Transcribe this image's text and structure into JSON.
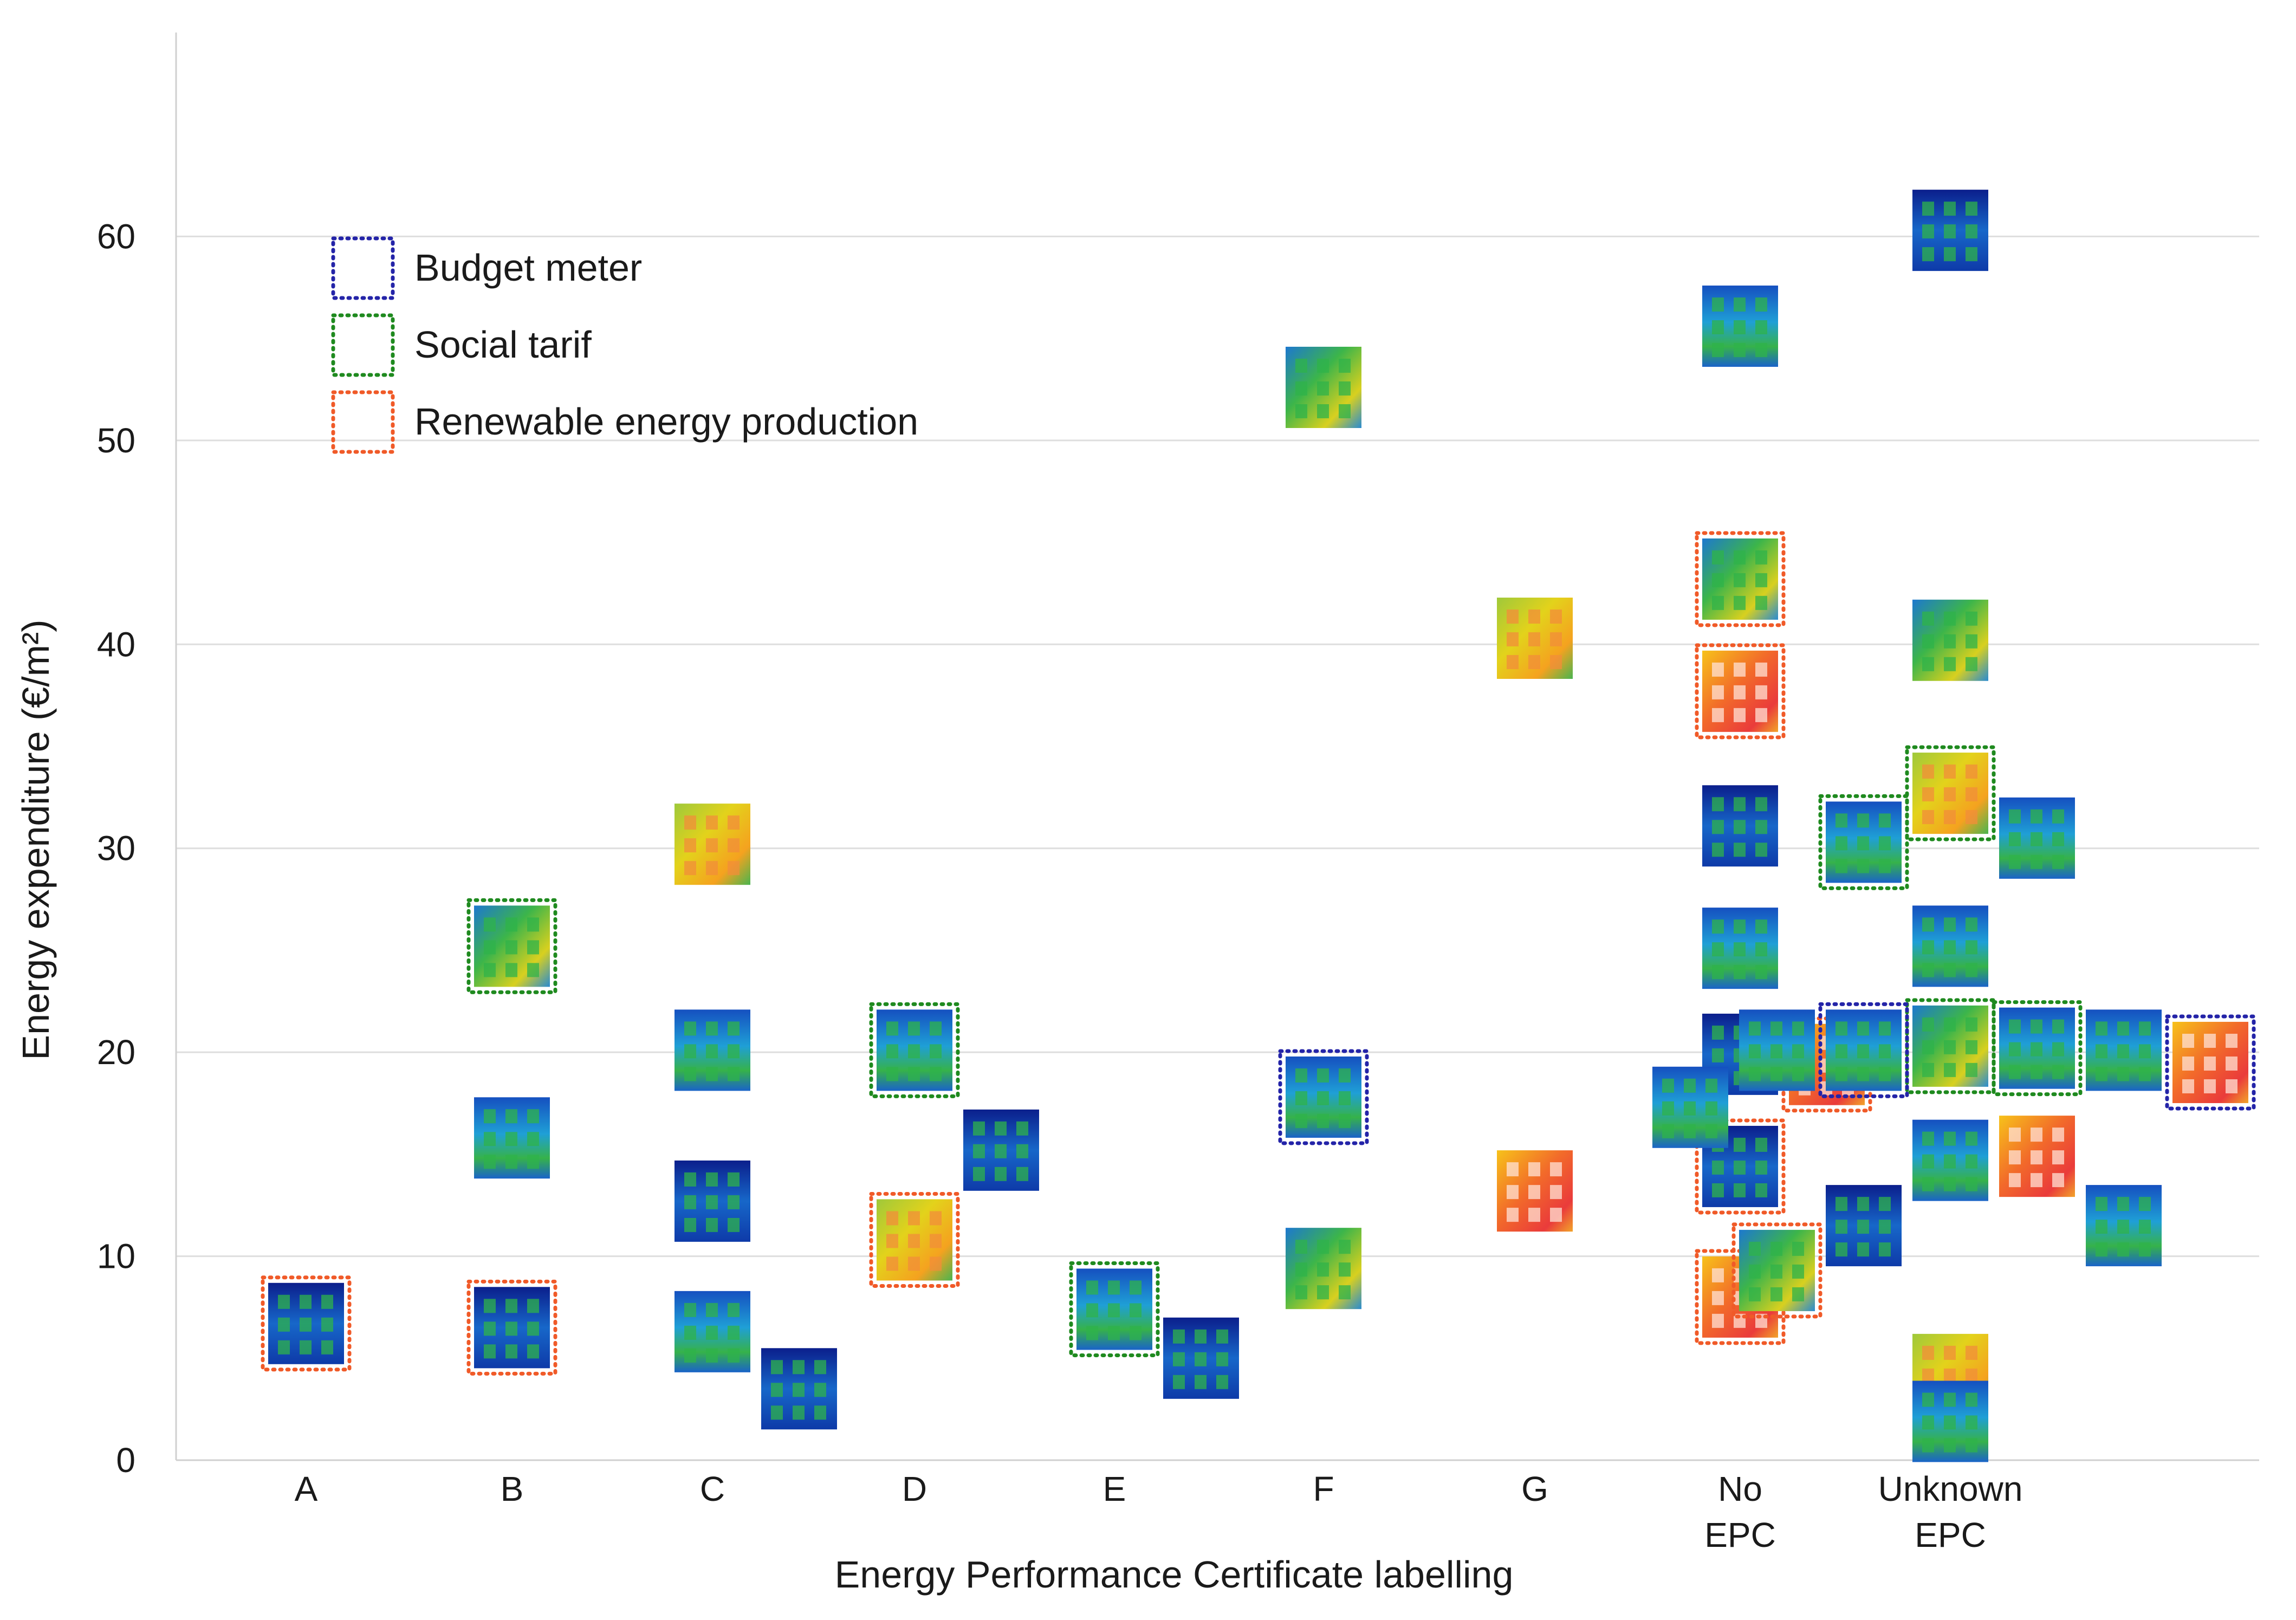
{
  "chart_data": {
    "type": "scatter",
    "title": "",
    "xlabel": "Energy Performance Certificate labelling",
    "ylabel": "Energy expenditure (€/m²)",
    "ylim": [
      0,
      70
    ],
    "yticks": [
      0,
      10,
      20,
      30,
      40,
      50,
      60
    ],
    "grid": true,
    "categories": [
      {
        "id": "A",
        "lines": [
          "A"
        ]
      },
      {
        "id": "B",
        "lines": [
          "B"
        ]
      },
      {
        "id": "C",
        "lines": [
          "C"
        ]
      },
      {
        "id": "D",
        "lines": [
          "D"
        ]
      },
      {
        "id": "E",
        "lines": [
          "E"
        ]
      },
      {
        "id": "F",
        "lines": [
          "F"
        ]
      },
      {
        "id": "G",
        "lines": [
          "G"
        ]
      },
      {
        "id": "NoEPC",
        "lines": [
          "No",
          "EPC"
        ]
      },
      {
        "id": "UnknownEPC",
        "lines": [
          "Unknown",
          "EPC"
        ]
      }
    ],
    "legend": {
      "placement": "top-left",
      "entries": [
        {
          "key": "budget",
          "label": "Budget meter",
          "color": "#2424a8"
        },
        {
          "key": "social",
          "label": "Social tarif",
          "color": "#1f8a1f"
        },
        {
          "key": "renewable",
          "label": "Renewable energy production",
          "color": "#f05a28"
        }
      ]
    },
    "points": [
      {
        "category": "A",
        "value": 6.7,
        "tags": [
          "renewable"
        ],
        "palette": "cold"
      },
      {
        "category": "B",
        "value": 25.2,
        "tags": [
          "social"
        ],
        "palette": "mixed"
      },
      {
        "category": "B",
        "value": 15.8,
        "tags": [],
        "palette": "cool"
      },
      {
        "category": "B",
        "value": 6.5,
        "tags": [
          "renewable"
        ],
        "palette": "cold"
      },
      {
        "category": "C",
        "value": 30.2,
        "tags": [],
        "palette": "warm"
      },
      {
        "category": "C",
        "value": 20.1,
        "tags": [],
        "palette": "cool"
      },
      {
        "category": "C",
        "value": 12.7,
        "tags": [],
        "palette": "cold"
      },
      {
        "category": "C",
        "value": 6.3,
        "tags": [],
        "palette": "cool"
      },
      {
        "category": "C",
        "value": 3.5,
        "tags": [],
        "palette": "cold"
      },
      {
        "category": "D",
        "value": 20.1,
        "tags": [
          "social"
        ],
        "palette": "cool"
      },
      {
        "category": "D",
        "value": 15.2,
        "tags": [],
        "palette": "cold"
      },
      {
        "category": "D",
        "value": 10.8,
        "tags": [
          "renewable"
        ],
        "palette": "warm"
      },
      {
        "category": "E",
        "value": 7.4,
        "tags": [
          "social"
        ],
        "palette": "cool"
      },
      {
        "category": "E",
        "value": 5.0,
        "tags": [],
        "palette": "cold"
      },
      {
        "category": "F",
        "value": 52.6,
        "tags": [],
        "palette": "mixed"
      },
      {
        "category": "F",
        "value": 17.8,
        "tags": [
          "budget"
        ],
        "palette": "cool"
      },
      {
        "category": "F",
        "value": 9.4,
        "tags": [],
        "palette": "mixed"
      },
      {
        "category": "G",
        "value": 40.3,
        "tags": [],
        "palette": "warm"
      },
      {
        "category": "G",
        "value": 13.2,
        "tags": [],
        "palette": "hot"
      },
      {
        "category": "NoEPC",
        "value": 55.6,
        "tags": [],
        "palette": "cool"
      },
      {
        "category": "NoEPC",
        "value": 43.2,
        "tags": [
          "renewable"
        ],
        "palette": "mixed"
      },
      {
        "category": "NoEPC",
        "value": 37.7,
        "tags": [
          "renewable"
        ],
        "palette": "hot"
      },
      {
        "category": "NoEPC",
        "value": 31.1,
        "tags": [],
        "palette": "cold"
      },
      {
        "category": "NoEPC",
        "value": 25.1,
        "tags": [],
        "palette": "cool"
      },
      {
        "category": "NoEPC",
        "value": 19.9,
        "tags": [],
        "palette": "cold"
      },
      {
        "category": "NoEPC",
        "value": 19.4,
        "tags": [
          "renewable"
        ],
        "palette": "hot"
      },
      {
        "category": "NoEPC",
        "value": 14.4,
        "tags": [
          "renewable"
        ],
        "palette": "cold"
      },
      {
        "category": "NoEPC",
        "value": 8.0,
        "tags": [
          "renewable"
        ],
        "palette": "hot"
      },
      {
        "category": "UnknownEPC",
        "value": 60.3,
        "tags": [],
        "palette": "cold"
      },
      {
        "category": "UnknownEPC",
        "value": 40.2,
        "tags": [],
        "palette": "mixed"
      },
      {
        "category": "UnknownEPC",
        "value": 32.7,
        "tags": [
          "social"
        ],
        "palette": "warm"
      },
      {
        "category": "UnknownEPC",
        "value": 30.5,
        "tags": [],
        "palette": "cool"
      },
      {
        "category": "UnknownEPC",
        "value": 30.3,
        "tags": [
          "social"
        ],
        "palette": "cool"
      },
      {
        "category": "UnknownEPC",
        "value": 25.2,
        "tags": [],
        "palette": "cool"
      },
      {
        "category": "UnknownEPC",
        "value": 20.3,
        "tags": [
          "social"
        ],
        "palette": "mixed"
      },
      {
        "category": "UnknownEPC",
        "value": 20.2,
        "tags": [
          "social"
        ],
        "palette": "cool"
      },
      {
        "category": "UnknownEPC",
        "value": 20.1,
        "tags": [
          "budget"
        ],
        "palette": "cool"
      },
      {
        "category": "UnknownEPC",
        "value": 20.1,
        "tags": [],
        "palette": "cool"
      },
      {
        "category": "UnknownEPC",
        "value": 20.1,
        "tags": [],
        "palette": "cool"
      },
      {
        "category": "UnknownEPC",
        "value": 19.5,
        "tags": [
          "budget"
        ],
        "palette": "hot"
      },
      {
        "category": "UnknownEPC",
        "value": 17.3,
        "tags": [],
        "palette": "cool"
      },
      {
        "category": "UnknownEPC",
        "value": 14.7,
        "tags": [],
        "palette": "cool"
      },
      {
        "category": "UnknownEPC",
        "value": 14.9,
        "tags": [],
        "palette": "hot"
      },
      {
        "category": "UnknownEPC",
        "value": 11.5,
        "tags": [],
        "palette": "cold"
      },
      {
        "category": "UnknownEPC",
        "value": 11.5,
        "tags": [],
        "palette": "cool"
      },
      {
        "category": "UnknownEPC",
        "value": 9.3,
        "tags": [
          "renewable"
        ],
        "palette": "mixed"
      },
      {
        "category": "UnknownEPC",
        "value": 4.2,
        "tags": [],
        "palette": "warm"
      },
      {
        "category": "UnknownEPC",
        "value": 1.9,
        "tags": [],
        "palette": "cool"
      }
    ]
  }
}
